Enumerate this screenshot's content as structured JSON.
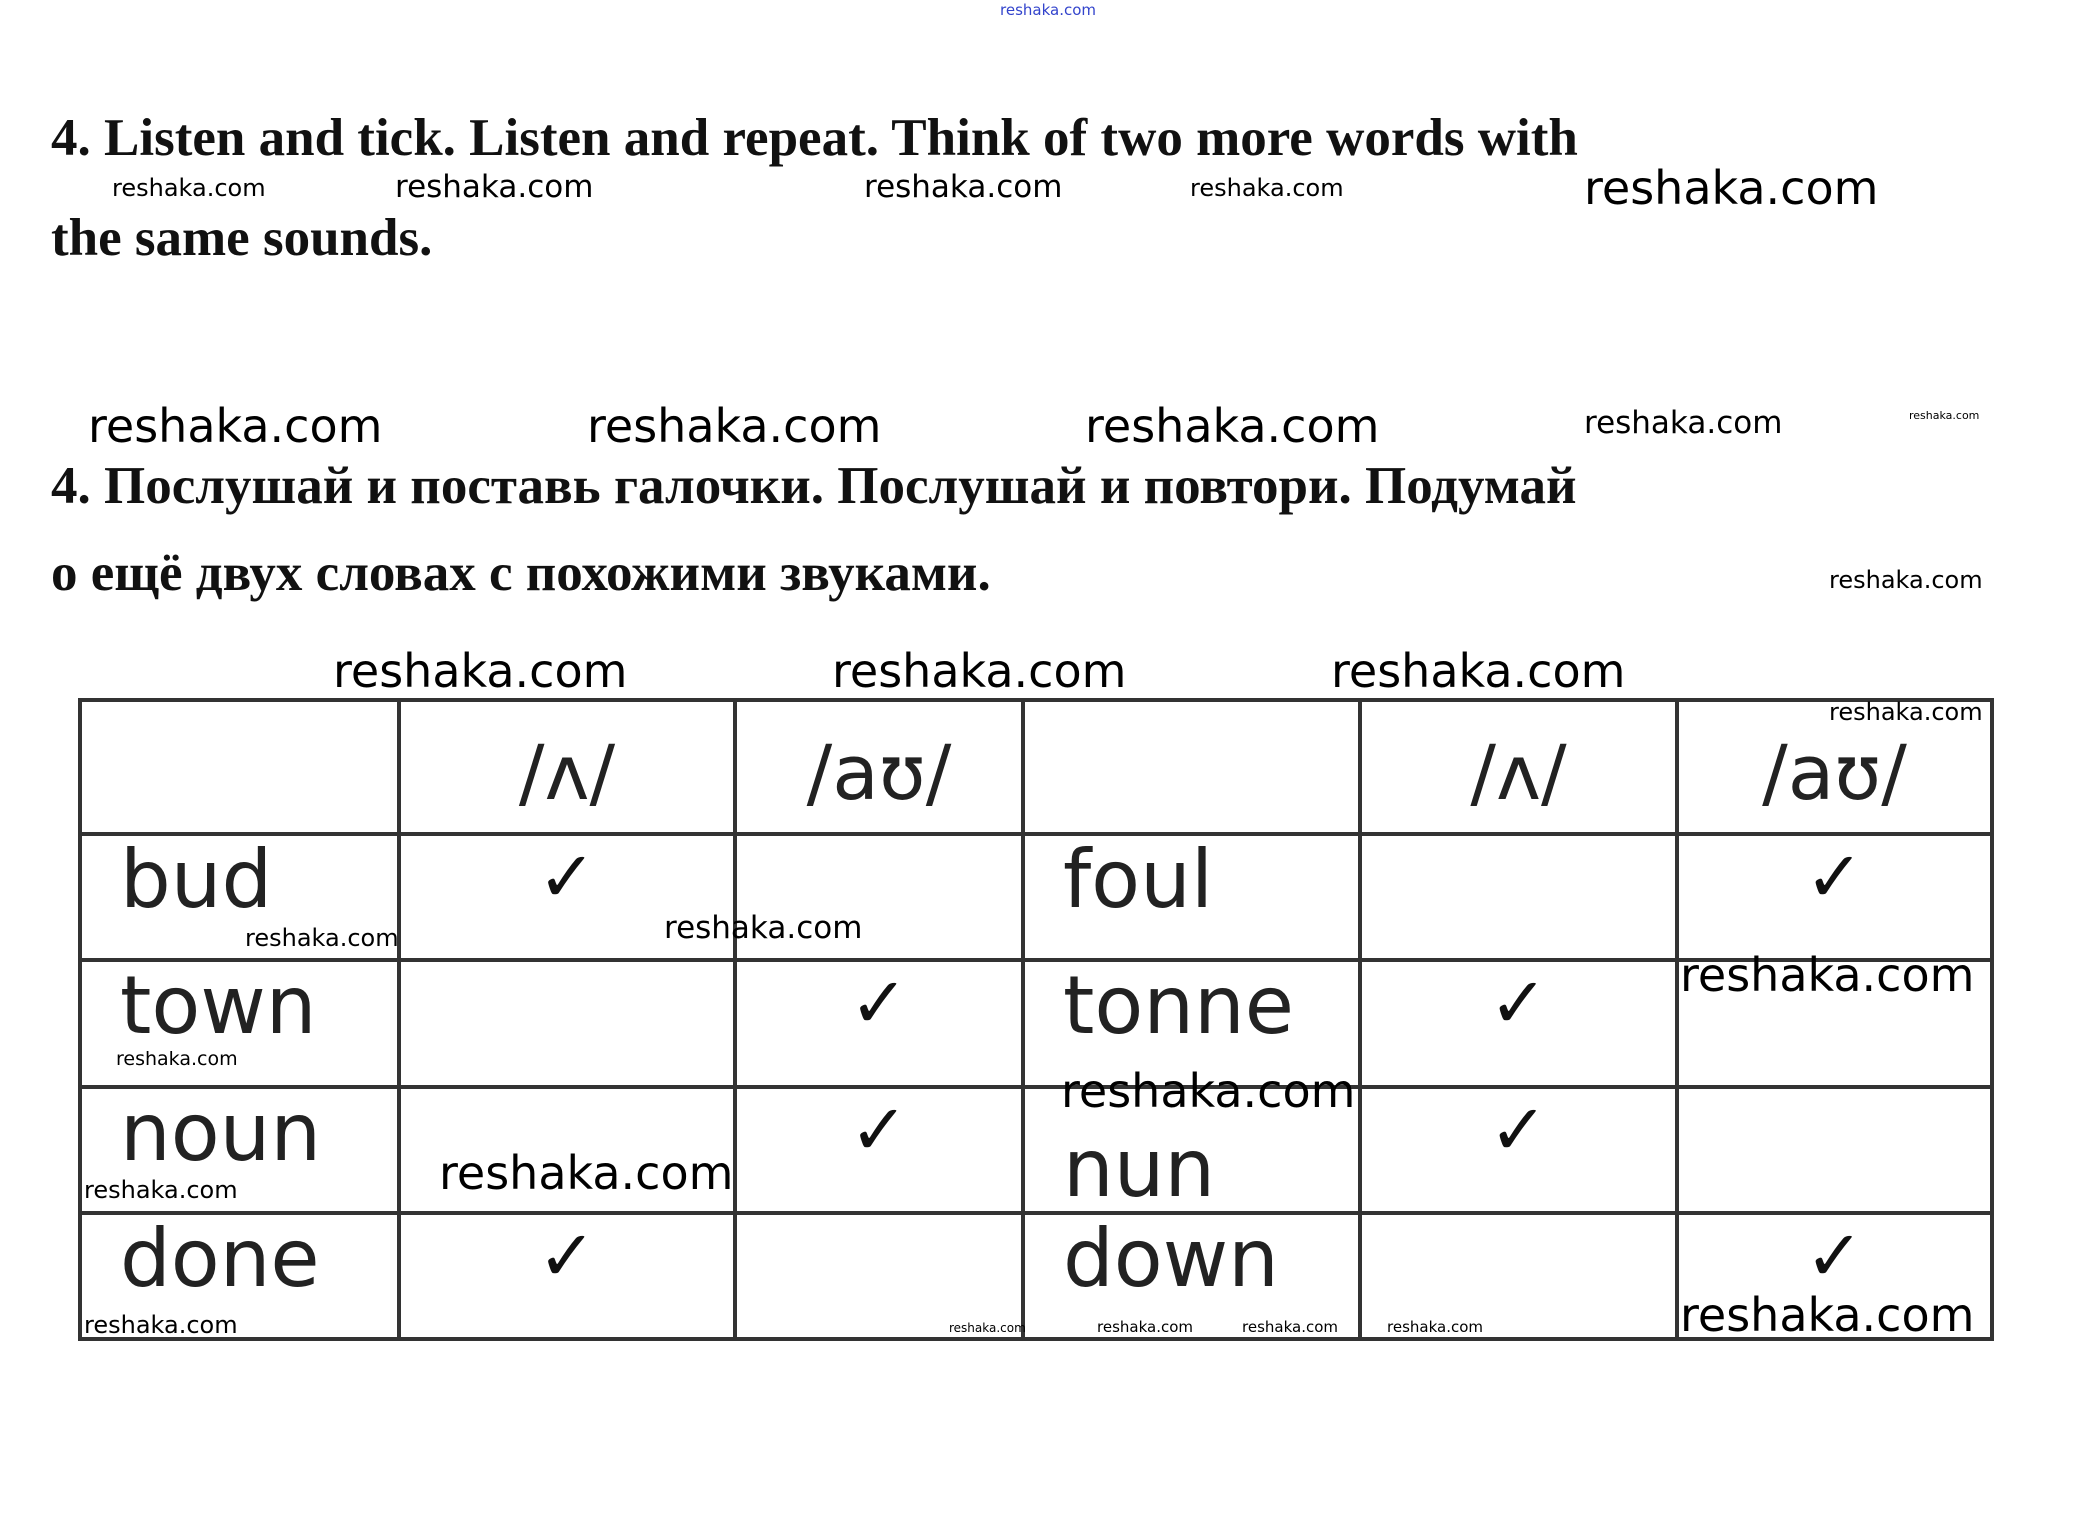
{
  "instructions": {
    "en_line1": "4. Listen and tick. Listen and repeat. Think of two more words with",
    "en_line2": "the same sounds.",
    "ru_line1": "4. Послушай и поставь галочки. Послушай и повтори. Подумай",
    "ru_line2": "о ещё двух словах с похожими звуками."
  },
  "table": {
    "headers": [
      "",
      "/ʌ/",
      "/aʊ/",
      "",
      "/ʌ/",
      "/aʊ/"
    ],
    "rows": [
      [
        "bud",
        "✓",
        "",
        "foul",
        "",
        "✓"
      ],
      [
        "town",
        "",
        "✓",
        "tonne",
        "✓",
        ""
      ],
      [
        "noun",
        "",
        "✓",
        "nun",
        "✓",
        ""
      ],
      [
        "done",
        "✓",
        "",
        "down",
        "",
        "✓"
      ]
    ]
  },
  "watermarks": [
    "reshaka.com",
    "reshaka.com",
    "reshaka.com",
    "reshaka.com",
    "reshaka.com",
    "reshaka.com",
    "reshaka.com",
    "reshaka.com",
    "reshaka.com",
    "reshaka.com",
    "reshaka.com",
    "reshaka.com",
    "reshaka.com",
    "reshaka.com",
    "reshaka.com",
    "reshaka.com",
    "reshaka.com",
    "reshaka.com",
    "reshaka.com",
    "reshaka.com",
    "reshaka.com",
    "reshaka.com",
    "reshaka.com",
    "reshaka.com",
    "reshaka.com",
    "reshaka.com",
    "reshaka.com",
    "reshaka.com",
    "reshaka.com"
  ],
  "colors": {
    "top_watermark": "#3344cc",
    "text": "#111111",
    "grid": "#333333"
  }
}
